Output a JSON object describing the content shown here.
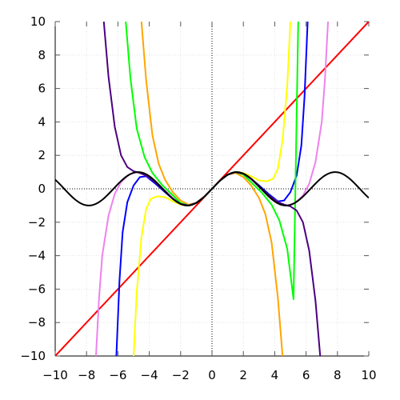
{
  "chart_data": {
    "type": "line",
    "title": "",
    "xlabel": "",
    "ylabel": "",
    "xlim": [
      -10,
      10
    ],
    "ylim": [
      -10,
      10
    ],
    "grid": true,
    "legend": "none",
    "x_ticks": [
      -10,
      -8,
      -6,
      -4,
      -2,
      0,
      2,
      4,
      6,
      8,
      10
    ],
    "y_ticks": [
      -10,
      -8,
      -6,
      -4,
      -2,
      0,
      2,
      4,
      6,
      8,
      10
    ],
    "x_tick_labels": [
      "−10",
      "−8",
      "−6",
      "−4",
      "−2",
      "0",
      "2",
      "4",
      "6",
      "8",
      "10"
    ],
    "y_tick_labels": [
      "−10",
      "−8",
      "−6",
      "−4",
      "−2",
      "0",
      "2",
      "4",
      "6",
      "8",
      "10"
    ],
    "series": [
      {
        "color": "#ff0000",
        "points": [
          [
            -10,
            -10
          ],
          [
            10,
            10
          ]
        ]
      },
      {
        "color": "#ffff00",
        "points": [
          [
            -5,
            -10
          ],
          [
            -4.8,
            -6.2
          ],
          [
            -4.5,
            -2.9
          ],
          [
            -4.2,
            -1.2
          ],
          [
            -3.9,
            -0.6
          ],
          [
            -3.5,
            -0.45
          ],
          [
            -3,
            -0.5
          ],
          [
            -2.5,
            -0.75
          ],
          [
            -2,
            -0.95
          ],
          [
            -1.5,
            -1.0
          ],
          [
            -1,
            -0.84
          ],
          [
            -0.5,
            -0.48
          ],
          [
            0,
            0
          ],
          [
            0.5,
            0.48
          ],
          [
            1,
            0.84
          ],
          [
            1.5,
            1.0
          ],
          [
            2,
            0.95
          ],
          [
            2.5,
            0.75
          ],
          [
            3,
            0.5
          ],
          [
            3.5,
            0.45
          ],
          [
            3.9,
            0.6
          ],
          [
            4.2,
            1.2
          ],
          [
            4.5,
            2.9
          ],
          [
            4.8,
            6.2
          ],
          [
            5,
            10
          ]
        ]
      },
      {
        "color": "#0000ff",
        "points": [
          [
            -6.1,
            -10
          ],
          [
            -5.9,
            -5.5
          ],
          [
            -5.7,
            -2.6
          ],
          [
            -5.4,
            -0.8
          ],
          [
            -5,
            0.2
          ],
          [
            -4.6,
            0.7
          ],
          [
            -4.2,
            0.75
          ],
          [
            -3.6,
            0.3
          ],
          [
            -3,
            -0.2
          ],
          [
            -2.5,
            -0.6
          ],
          [
            -2,
            -0.9
          ],
          [
            -1.5,
            -1.0
          ],
          [
            -1,
            -0.84
          ],
          [
            -0.5,
            -0.48
          ],
          [
            0,
            0
          ],
          [
            0.5,
            0.48
          ],
          [
            1,
            0.84
          ],
          [
            1.5,
            1.0
          ],
          [
            2,
            0.9
          ],
          [
            2.5,
            0.6
          ],
          [
            3,
            0.2
          ],
          [
            3.6,
            -0.3
          ],
          [
            4.2,
            -0.75
          ],
          [
            4.6,
            -0.7
          ],
          [
            5,
            -0.2
          ],
          [
            5.4,
            0.8
          ],
          [
            5.7,
            2.6
          ],
          [
            5.9,
            5.5
          ],
          [
            6.1,
            10
          ]
        ]
      },
      {
        "color": "#ee82ee",
        "points": [
          [
            -7.4,
            -10
          ],
          [
            -7.2,
            -6.5
          ],
          [
            -7,
            -4
          ],
          [
            -6.6,
            -1.6
          ],
          [
            -6.2,
            -0.3
          ],
          [
            -5.8,
            0.4
          ],
          [
            -5.3,
            0.85
          ],
          [
            -4.8,
            1.0
          ],
          [
            -4.2,
            0.8
          ],
          [
            -3.6,
            0.4
          ],
          [
            -3,
            -0.1
          ],
          [
            -2.5,
            -0.55
          ],
          [
            -2,
            -0.9
          ],
          [
            -1.5,
            -1.0
          ],
          [
            -1,
            -0.84
          ],
          [
            -0.5,
            -0.48
          ],
          [
            0,
            0
          ],
          [
            0.5,
            0.48
          ],
          [
            1,
            0.84
          ],
          [
            1.5,
            1.0
          ],
          [
            2,
            0.9
          ],
          [
            2.5,
            0.55
          ],
          [
            3,
            0.1
          ],
          [
            3.6,
            -0.4
          ],
          [
            4.2,
            -0.8
          ],
          [
            4.8,
            -1.0
          ],
          [
            5.3,
            -0.85
          ],
          [
            5.8,
            -0.4
          ],
          [
            6.2,
            0.3
          ],
          [
            6.6,
            1.6
          ],
          [
            7,
            4
          ],
          [
            7.2,
            6.5
          ],
          [
            7.4,
            10
          ]
        ]
      },
      {
        "color": "#ffa500",
        "points": [
          [
            -4.5,
            10
          ],
          [
            -4.2,
            6.5
          ],
          [
            -3.8,
            3.2
          ],
          [
            -3.4,
            1.5
          ],
          [
            -3,
            0.55
          ],
          [
            -2.5,
            -0.2
          ],
          [
            -2,
            -0.7
          ],
          [
            -1.5,
            -0.95
          ],
          [
            -1,
            -0.84
          ],
          [
            -0.5,
            -0.48
          ],
          [
            0,
            0
          ],
          [
            0.5,
            0.48
          ],
          [
            1,
            0.84
          ],
          [
            1.5,
            0.95
          ],
          [
            2,
            0.7
          ],
          [
            2.5,
            0.2
          ],
          [
            3,
            -0.55
          ],
          [
            3.4,
            -1.5
          ],
          [
            3.8,
            -3.2
          ],
          [
            4.2,
            -6.5
          ],
          [
            4.5,
            -10
          ]
        ]
      },
      {
        "color": "#00ff00",
        "points": [
          [
            -5.5,
            10
          ],
          [
            -5.2,
            6.6
          ],
          [
            -4.8,
            3.6
          ],
          [
            -4.3,
            1.9
          ],
          [
            -3.8,
            0.95
          ],
          [
            -3.2,
            0.25
          ],
          [
            -2.6,
            -0.3
          ],
          [
            -2,
            -0.85
          ],
          [
            -1.5,
            -1.0
          ],
          [
            -1,
            -0.84
          ],
          [
            -0.5,
            -0.48
          ],
          [
            0,
            0
          ],
          [
            0.5,
            0.48
          ],
          [
            1,
            0.84
          ],
          [
            1.5,
            1.0
          ],
          [
            2,
            0.85
          ],
          [
            2.6,
            0.3
          ],
          [
            3.2,
            -0.25
          ],
          [
            3.8,
            -0.95
          ],
          [
            4.3,
            -1.9
          ],
          [
            4.8,
            -3.6
          ],
          [
            5.2,
            -6.6
          ],
          [
            5.5,
            10
          ]
        ]
      },
      {
        "color": "#4b0082",
        "points": [
          [
            -6.9,
            10
          ],
          [
            -6.6,
            6.7
          ],
          [
            -6.2,
            3.7
          ],
          [
            -5.8,
            2.0
          ],
          [
            -5.4,
            1.3
          ],
          [
            -5,
            1.05
          ],
          [
            -4.6,
            0.95
          ],
          [
            -4.1,
            0.75
          ],
          [
            -3.5,
            0.3
          ],
          [
            -3,
            -0.15
          ],
          [
            -2.5,
            -0.6
          ],
          [
            -2,
            -0.9
          ],
          [
            -1.5,
            -1.0
          ],
          [
            -1,
            -0.84
          ],
          [
            -0.5,
            -0.48
          ],
          [
            0,
            0
          ],
          [
            0.5,
            0.48
          ],
          [
            1,
            0.84
          ],
          [
            1.5,
            1.0
          ],
          [
            2,
            0.9
          ],
          [
            2.5,
            0.6
          ],
          [
            3,
            0.15
          ],
          [
            3.5,
            -0.3
          ],
          [
            4.1,
            -0.75
          ],
          [
            4.6,
            -0.95
          ],
          [
            5,
            -1.05
          ],
          [
            5.4,
            -1.3
          ],
          [
            5.8,
            -2.0
          ],
          [
            6.2,
            -3.7
          ],
          [
            6.6,
            -6.7
          ],
          [
            6.9,
            -10
          ]
        ]
      },
      {
        "color": "#000000",
        "points": "sin"
      }
    ]
  }
}
